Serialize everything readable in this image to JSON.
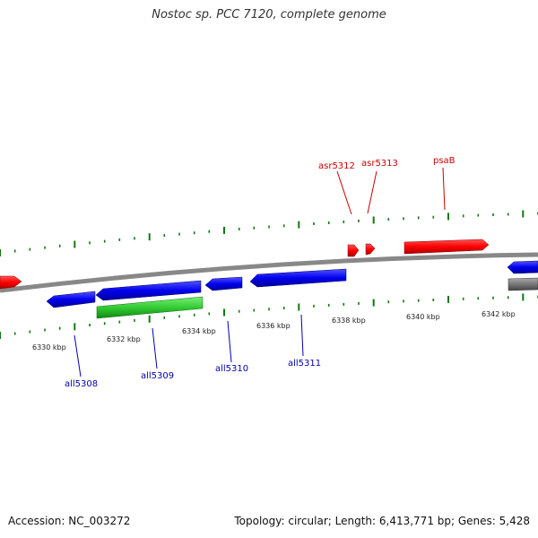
{
  "title": "Nostoc sp. PCC 7120, complete genome",
  "footer": {
    "accession": "Accession: NC_003272",
    "summary": "Topology: circular; Length: 6,413,771 bp; Genes: 5,428"
  },
  "colors": {
    "forward_gene": "#ff0000",
    "reverse_gene": "#0000ee",
    "feature_green": "#33cc33",
    "feature_gray": "#777777",
    "tick": "#117711",
    "backbone": "#888888",
    "label_forward": "#cc0000",
    "label_reverse": "#0000aa"
  },
  "scale": {
    "unit": "kbp",
    "labels": [
      "6330 kbp",
      "6332 kbp",
      "6334 kbp",
      "6336 kbp",
      "6338 kbp",
      "6340 kbp",
      "6342 kbp"
    ]
  },
  "genes": {
    "forward": [
      {
        "name": "asr5312"
      },
      {
        "name": "asr5313"
      },
      {
        "name": "psaB"
      }
    ],
    "reverse": [
      {
        "name": "all5308"
      },
      {
        "name": "all5309"
      },
      {
        "name": "all5310"
      },
      {
        "name": "all5311"
      }
    ]
  }
}
